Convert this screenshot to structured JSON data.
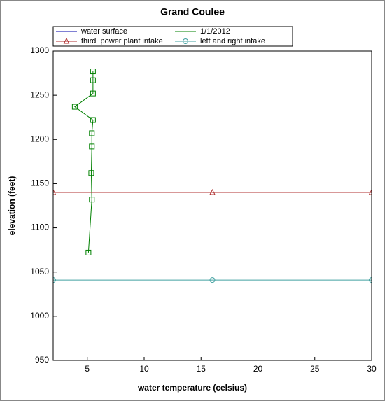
{
  "chart_data": {
    "type": "line",
    "title": "Grand Coulee",
    "x_label": "water temperature (celsius)",
    "y_label": "elevation (feet)",
    "xlim": [
      2,
      30
    ],
    "xticks": [
      5,
      10,
      15,
      20,
      25,
      30
    ],
    "ylim": [
      950,
      1300
    ],
    "yticks": [
      950,
      1000,
      1050,
      1100,
      1150,
      1200,
      1250,
      1300
    ],
    "series": [
      {
        "name": "water surface",
        "color": "#0000aa",
        "marker": "none",
        "x": [
          2,
          30
        ],
        "values": [
          1283,
          1283
        ]
      },
      {
        "name": "1/1/2012",
        "color": "#008000",
        "marker": "square",
        "x": [
          5.5,
          5.5,
          5.5,
          3.9,
          5.5,
          5.4,
          5.4,
          5.35,
          5.4,
          5.1
        ],
        "values": [
          1277,
          1267,
          1252,
          1237,
          1222,
          1207,
          1192,
          1162,
          1132,
          1072
        ]
      },
      {
        "name": "third  power plant intake",
        "color": "#b03030",
        "marker": "triangle",
        "x": [
          2,
          16,
          30
        ],
        "values": [
          1140,
          1140,
          1140
        ]
      },
      {
        "name": "left and right intake",
        "color": "#40a0a0",
        "marker": "circle",
        "x": [
          2,
          16,
          30
        ],
        "values": [
          1041,
          1041,
          1041
        ]
      }
    ]
  }
}
